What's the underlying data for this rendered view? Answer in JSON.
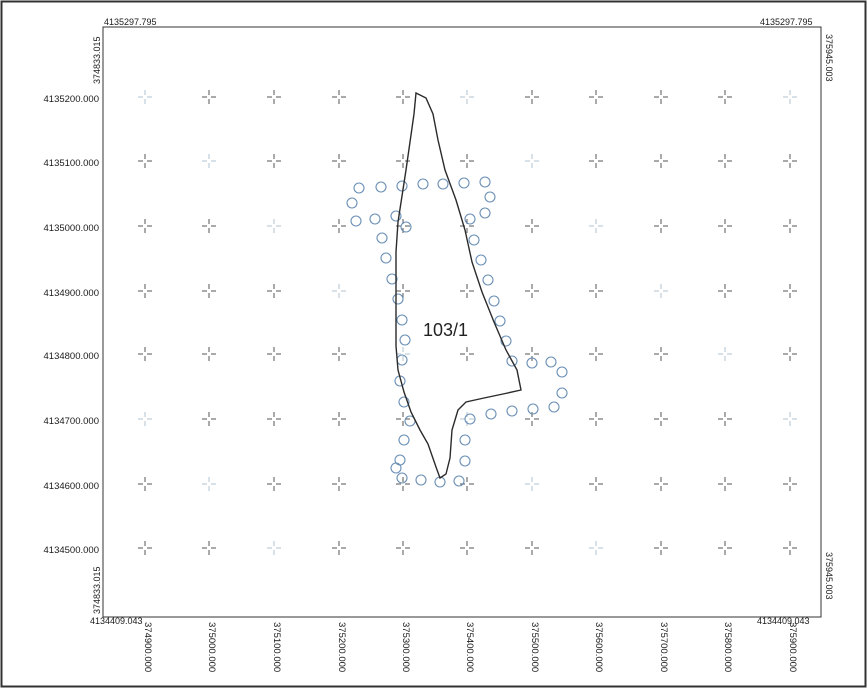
{
  "map": {
    "parcel_label": "103/1",
    "corners": {
      "top_left": "4135297.795",
      "top_right": "4135297.795",
      "bottom_left": "4134409.043",
      "bottom_right": "4134409.043",
      "left_top_vertical": "374833.015",
      "left_bottom_vertical": "374833.015",
      "right_top_vertical": "375945.003",
      "right_bottom_vertical": "375945.003"
    },
    "y_ticks": [
      "4135200.000",
      "4135100.000",
      "4135000.000",
      "4134900.000",
      "4134800.000",
      "4134700.000",
      "4134600.000",
      "4134500.000"
    ],
    "x_ticks": [
      "374900.000",
      "375000.000",
      "375100.000",
      "375200.000",
      "375300.000",
      "375400.000",
      "375500.000",
      "375600.000",
      "375700.000",
      "375800.000",
      "375900.000"
    ],
    "colors": {
      "frame": "#333333",
      "boundary": "#2b2b2b",
      "buffer_circle": "#6a8fb5",
      "grid_cross": "#555555",
      "text": "#1a1a1a"
    }
  }
}
